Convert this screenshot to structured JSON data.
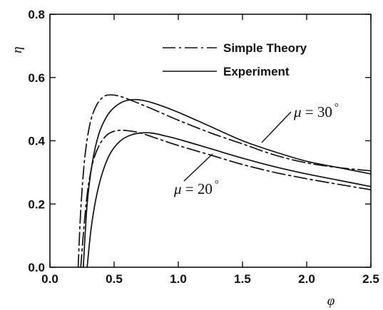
{
  "chart_data": {
    "type": "line",
    "xlabel": "φ",
    "ylabel": "η",
    "xlim": [
      0,
      2.5
    ],
    "ylim": [
      0,
      0.8
    ],
    "xticks": [
      "0.0",
      "0.5",
      "1.0",
      "1.5",
      "2.0",
      "2.5"
    ],
    "yticks": [
      "0.0",
      "0.2",
      "0.4",
      "0.6",
      "0.8"
    ],
    "grid": false,
    "legend_position": "top-right",
    "legend": [
      {
        "label": "Simple Theory",
        "style": "dash-dot"
      },
      {
        "label": "Experiment",
        "style": "solid"
      }
    ],
    "annotations": [
      {
        "text": "μ = 30°",
        "mu": "μ",
        "value": " = 30",
        "degree": "°"
      },
      {
        "text": "μ = 20°",
        "mu": "μ",
        "value": " = 20",
        "degree": "°"
      }
    ],
    "series": [
      {
        "style": "dash-dot",
        "group": "30",
        "x": [
          0.22,
          0.24,
          0.27,
          0.31,
          0.36,
          0.42,
          0.48,
          0.55,
          0.65,
          0.8,
          1.0,
          1.25,
          1.5,
          1.75,
          2.0,
          2.25,
          2.5
        ],
        "y": [
          0.0,
          0.18,
          0.34,
          0.45,
          0.51,
          0.54,
          0.545,
          0.54,
          0.525,
          0.5,
          0.465,
          0.425,
          0.39,
          0.355,
          0.33,
          0.315,
          0.305
        ]
      },
      {
        "style": "solid",
        "group": "30",
        "x": [
          0.26,
          0.29,
          0.33,
          0.38,
          0.44,
          0.5,
          0.58,
          0.68,
          0.8,
          1.0,
          1.25,
          1.5,
          1.75,
          2.0,
          2.25,
          2.5
        ],
        "y": [
          0.0,
          0.2,
          0.33,
          0.42,
          0.475,
          0.505,
          0.525,
          0.53,
          0.52,
          0.49,
          0.445,
          0.4,
          0.365,
          0.335,
          0.315,
          0.295
        ]
      },
      {
        "style": "dash-dot",
        "group": "20",
        "x": [
          0.24,
          0.27,
          0.3,
          0.34,
          0.39,
          0.45,
          0.52,
          0.6,
          0.7,
          0.85,
          1.0,
          1.25,
          1.5,
          1.75,
          2.0,
          2.25,
          2.5
        ],
        "y": [
          0.0,
          0.15,
          0.26,
          0.34,
          0.39,
          0.42,
          0.432,
          0.432,
          0.425,
          0.405,
          0.385,
          0.355,
          0.325,
          0.3,
          0.28,
          0.262,
          0.245
        ]
      },
      {
        "style": "solid",
        "group": "20",
        "x": [
          0.29,
          0.32,
          0.36,
          0.41,
          0.47,
          0.55,
          0.63,
          0.72,
          0.8,
          0.9,
          1.0,
          1.25,
          1.5,
          1.75,
          2.0,
          2.25,
          2.5
        ],
        "y": [
          0.0,
          0.12,
          0.22,
          0.3,
          0.36,
          0.4,
          0.418,
          0.425,
          0.424,
          0.415,
          0.405,
          0.375,
          0.345,
          0.318,
          0.295,
          0.275,
          0.255
        ]
      }
    ]
  }
}
